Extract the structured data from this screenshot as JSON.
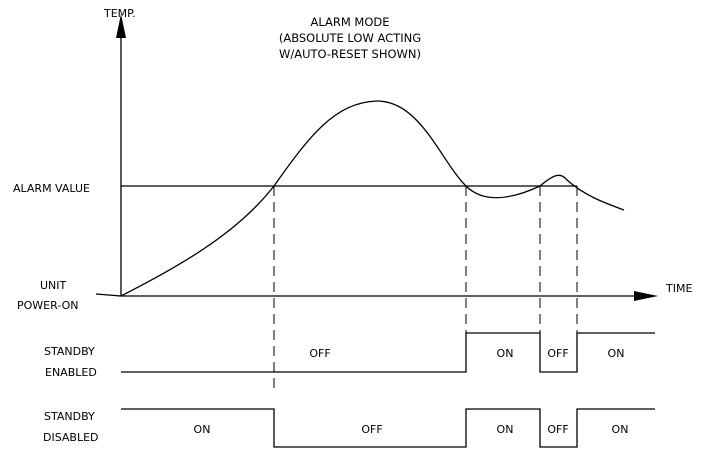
{
  "title": {
    "line1": "ALARM MODE",
    "line2": "(ABSOLUTE LOW ACTING",
    "line3": "W/AUTO-RESET SHOWN)"
  },
  "axes": {
    "y_label": "TEMP.",
    "x_label": "TIME"
  },
  "labels": {
    "alarm_value": "ALARM VALUE",
    "unit": "UNIT",
    "power_on": "POWER-ON",
    "standby_enabled_1": "STANDBY",
    "standby_enabled_2": "ENABLED",
    "standby_disabled_1": "STANDBY",
    "standby_disabled_2": "DISABLED"
  },
  "standby_enabled_states": [
    "OFF",
    "ON",
    "OFF",
    "ON"
  ],
  "standby_disabled_states": [
    "ON",
    "OFF",
    "ON",
    "OFF",
    "ON"
  ],
  "colors": {
    "line": "#000000",
    "background": "#ffffff"
  }
}
